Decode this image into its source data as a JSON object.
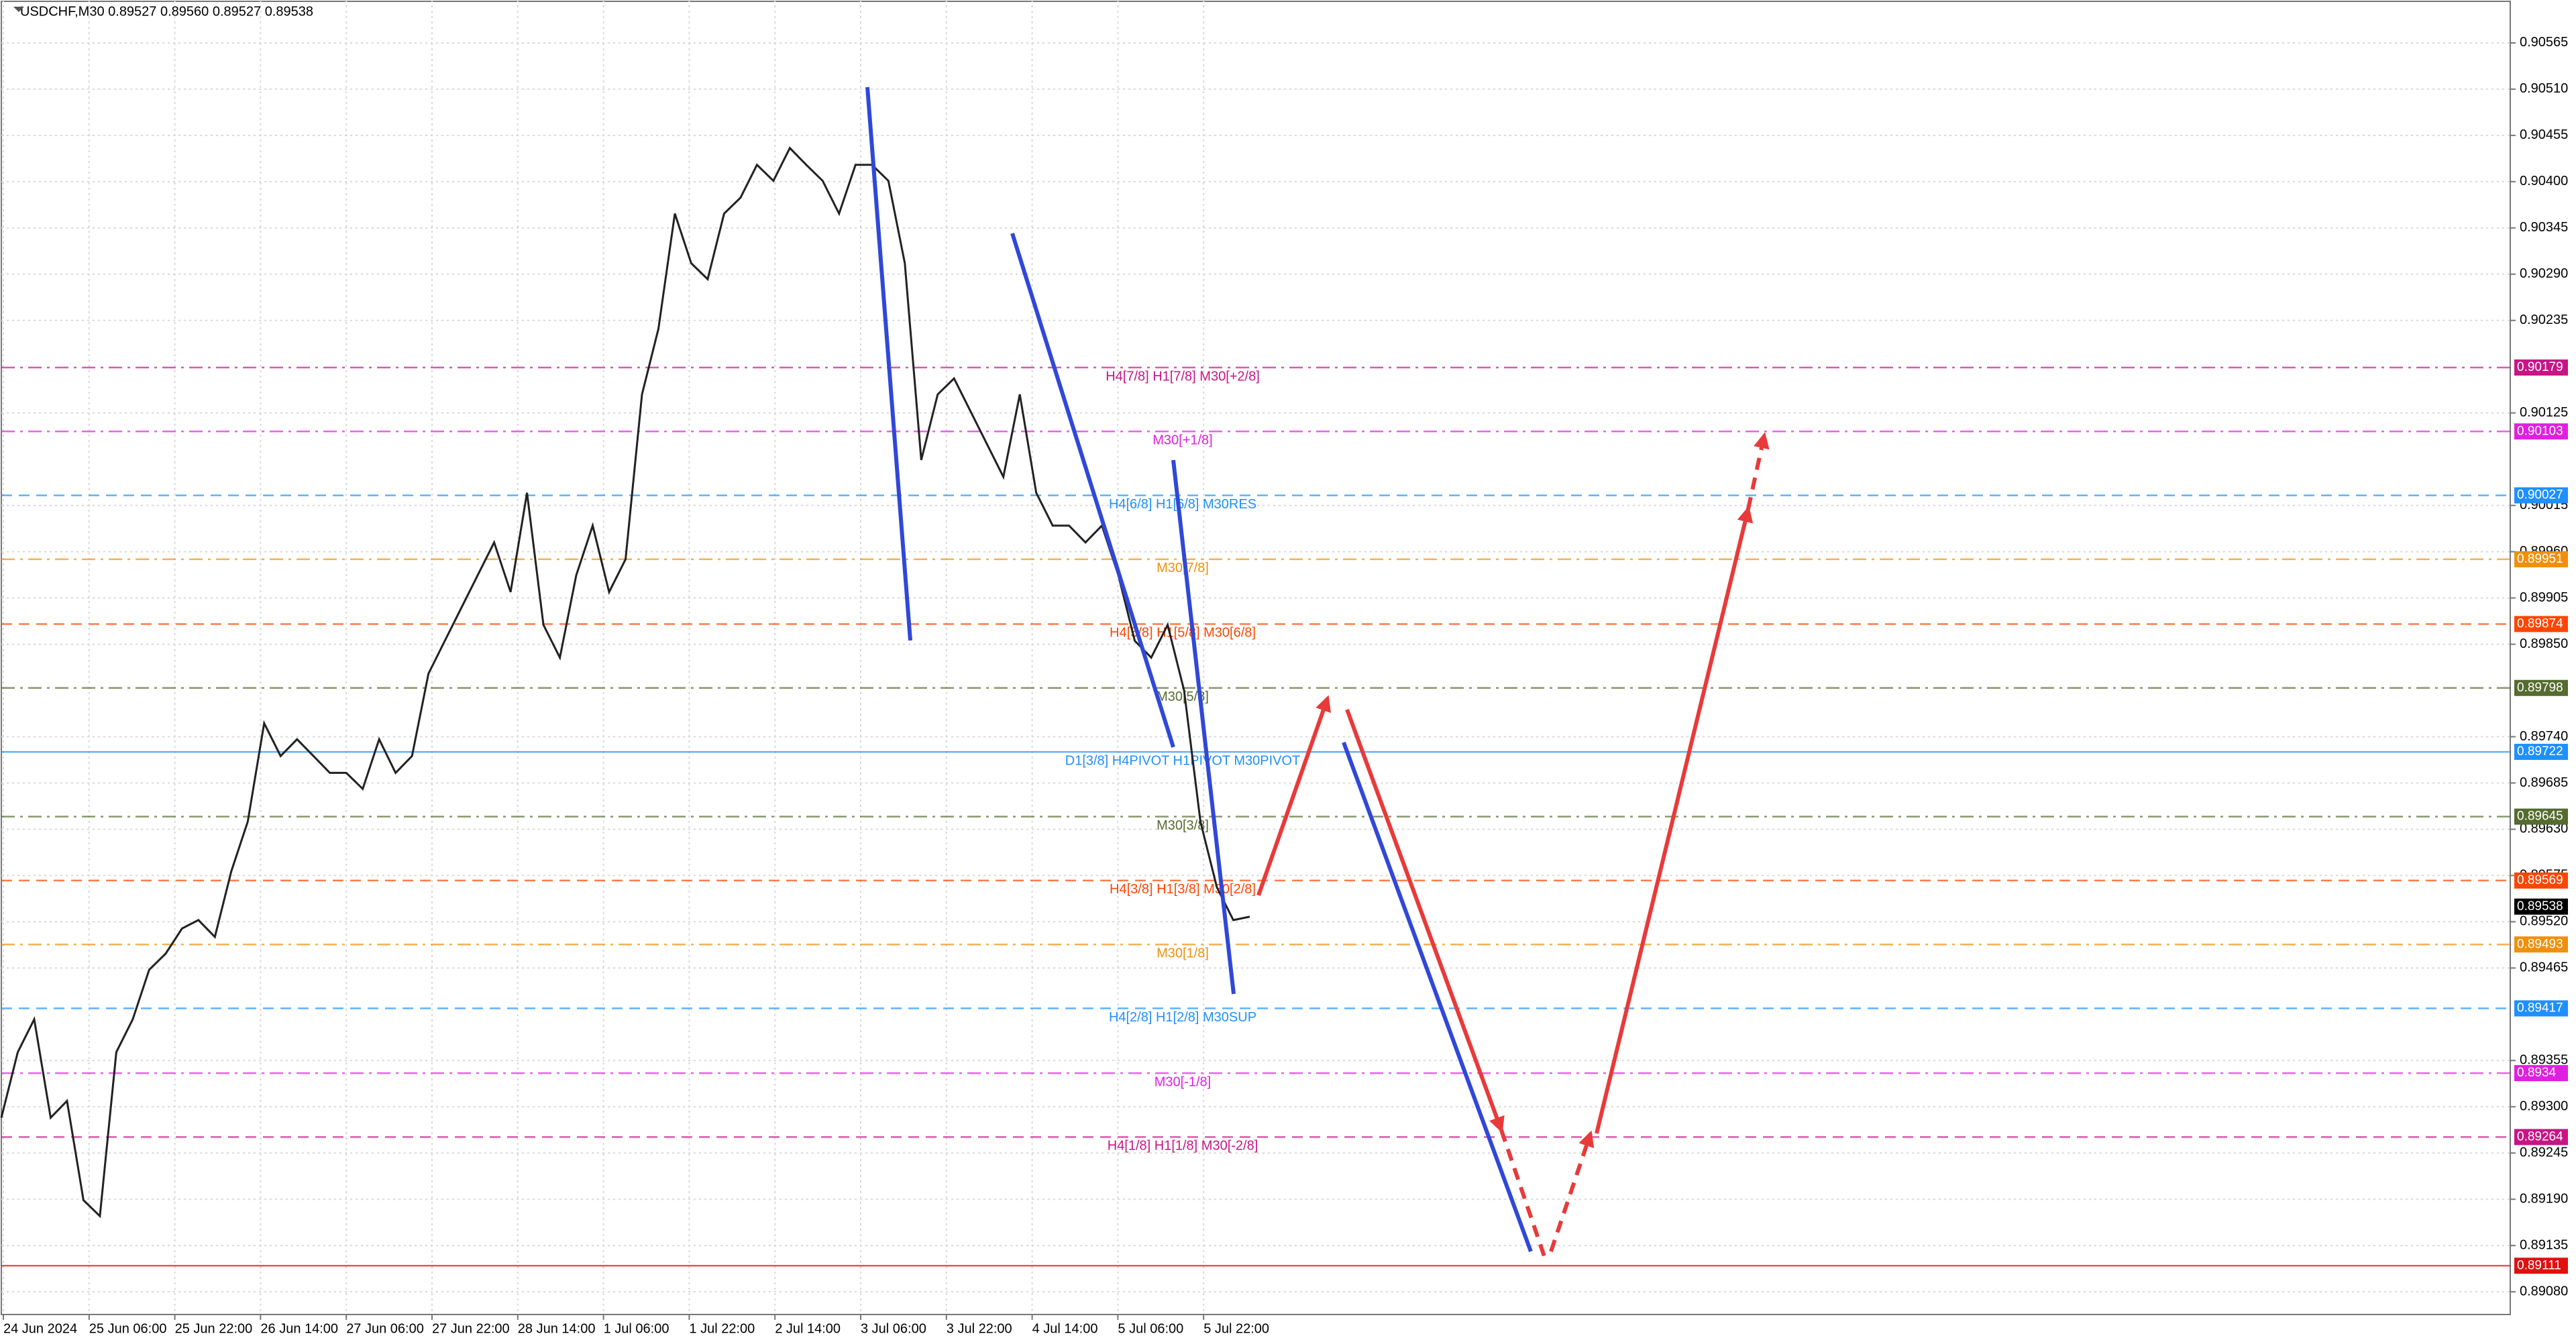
{
  "chart_data": {
    "type": "line",
    "title": "USDCHF,M30  0.89527 0.89560 0.89527 0.89538",
    "ylim": [
      0.89053,
      0.90616
    ],
    "yticks": [
      0.90565,
      {
        "value": 0.9051,
        "label": "0.90510"
      },
      0.90455,
      {
        "value": 0.904,
        "label": "0.90400"
      },
      0.90345,
      {
        "value": 0.9029,
        "label": "0.90290"
      },
      0.90235,
      0.90125,
      0.90015,
      {
        "value": 0.8996,
        "label": "0.89960"
      },
      0.89905,
      {
        "value": 0.8985,
        "label": "0.89850"
      },
      {
        "value": 0.8974,
        "label": "0.89740"
      },
      0.89685,
      {
        "value": 0.8963,
        "label": "0.89630"
      },
      0.89575,
      {
        "value": 0.8952,
        "label": "0.89520"
      },
      0.89465,
      0.89355,
      {
        "value": 0.893,
        "label": "0.89300"
      },
      0.89245,
      {
        "value": 0.8919,
        "label": "0.89190"
      },
      0.89135,
      {
        "value": 0.8908,
        "label": "0.89080"
      }
    ],
    "grid": true,
    "x_labels": [
      "24 Jun 2024",
      "25 Jun 06:00",
      "25 Jun 22:00",
      "26 Jun 14:00",
      "27 Jun 06:00",
      "27 Jun 22:00",
      "28 Jun 14:00",
      "1 Jul 06:00",
      "1 Jul 22:00",
      "2 Jul 14:00",
      "3 Jul 06:00",
      "3 Jul 22:00",
      "4 Jul 14:00",
      "5 Jul 06:00",
      "5 Jul 22:00"
    ],
    "series": [
      {
        "name": "USDCHF",
        "color": "#222222",
        "values": [
          0.89287,
          0.89365,
          0.89404,
          0.89287,
          0.89307,
          0.89189,
          0.8917,
          0.89365,
          0.89404,
          0.89463,
          0.89482,
          0.89512,
          0.89522,
          0.89502,
          0.8958,
          0.89639,
          0.89756,
          0.89717,
          0.89737,
          0.89717,
          0.89697,
          0.89697,
          0.89678,
          0.89737,
          0.89697,
          0.89717,
          0.89815,
          0.89854,
          0.89893,
          0.89932,
          0.89971,
          0.89912,
          0.9003,
          0.89873,
          0.89834,
          0.89932,
          0.89991,
          0.89912,
          0.89951,
          0.90147,
          0.90225,
          0.90362,
          0.90303,
          0.90284,
          0.90362,
          0.90381,
          0.9042,
          0.90401,
          0.9044,
          0.9042,
          0.90401,
          0.90362,
          0.9042,
          0.9042,
          0.90401,
          0.90303,
          0.90069,
          0.90147,
          0.90166,
          0.90127,
          0.90088,
          0.90049,
          0.90147,
          0.9003,
          0.89991,
          0.89991,
          0.89971,
          0.89991,
          0.89932,
          0.89854,
          0.89834,
          0.89873,
          0.89795,
          0.89639,
          0.89561,
          0.89522,
          0.89526
        ]
      }
    ],
    "last_price": 0.89538,
    "last_price_color": "#000000",
    "levels": [
      {
        "price": 0.90179,
        "label": "H4[7/8] H1[7/8] M30[+2/8]",
        "color": "#c71585",
        "style": "dashdot"
      },
      {
        "price": 0.90103,
        "label": "M30[+1/8]",
        "color": "#e020e0",
        "style": "dashdot"
      },
      {
        "price": 0.90027,
        "label": "H4[6/8] H1[6/8] M30RES",
        "color": "#1e90ff",
        "style": "dash"
      },
      {
        "price": 0.89951,
        "label": "M30[7/8]",
        "color": "#f0900a",
        "style": "dashdot"
      },
      {
        "price": 0.89874,
        "label": "H4[5/8] H1[5/8] M30[6/8]",
        "color": "#ff4500",
        "style": "dash"
      },
      {
        "price": 0.89798,
        "label": "M30[5/8]",
        "color": "#556b2f",
        "style": "dashdot"
      },
      {
        "price": 0.89722,
        "label": "D1[3/8] H4PIVOT H1PIVOT M30PIVOT",
        "color": "#1e90ff",
        "style": "solid"
      },
      {
        "price": 0.89645,
        "label": "M30[3/8]",
        "color": "#556b2f",
        "style": "dashdot"
      },
      {
        "price": 0.89569,
        "label": "H4[3/8] H1[3/8] M30[2/8]",
        "color": "#ff4500",
        "style": "dash"
      },
      {
        "price": 0.89493,
        "label": "M30[1/8]",
        "color": "#f0900a",
        "style": "dashdot"
      },
      {
        "price": 0.89417,
        "label": "H4[2/8] H1[2/8] M30SUP",
        "color": "#1e90ff",
        "style": "dash"
      },
      {
        "price": 0.8934,
        "label": "M30[-1/8]",
        "color": "#e020e0",
        "style": "dashdot"
      },
      {
        "price": 0.89264,
        "label": "H4[1/8] H1[1/8] M30[-2/8]",
        "color": "#c71585",
        "style": "dash"
      },
      {
        "price": 0.89111,
        "color": "#e01010",
        "style": "solid"
      }
    ]
  }
}
